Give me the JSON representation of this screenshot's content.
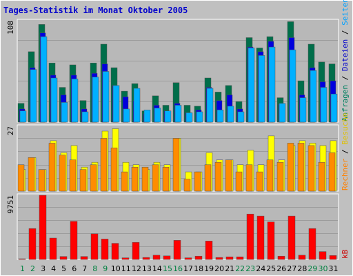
{
  "title": "Tages-Statistik im Monat Oktober 2005",
  "colors": {
    "background": "#c0c0c0",
    "frame": "#ffffff",
    "plot": "#b8b8b8",
    "grid": "#9c9c9c",
    "title": "#0000cc",
    "weekday_label": "#000000",
    "weekend_label": "#008040",
    "legend_anfragen": "#008060",
    "legend_dateien": "#0000cc",
    "legend_seiten": "#00a0ff",
    "legend_besuche": "#e0c000",
    "legend_rechner": "#ff8000",
    "legend_kb": "#cc0000",
    "anfragen": "#006e4a",
    "dateien": "#0000dd",
    "seiten": "#00b0ff",
    "besuche": "#ffff00",
    "rechner": "#ff8c00",
    "kb": "#ff0000"
  },
  "chart_data": [
    {
      "type": "bar",
      "panel": "requests",
      "y_max_label": "108",
      "ylim": [
        0,
        108
      ],
      "categories": [
        "1",
        "2",
        "3",
        "4",
        "5",
        "6",
        "7",
        "8",
        "9",
        "10",
        "11",
        "12",
        "13",
        "14",
        "15",
        "16",
        "17",
        "18",
        "19",
        "20",
        "21",
        "22",
        "23",
        "24",
        "25",
        "26",
        "27",
        "28",
        "29",
        "30",
        "31"
      ],
      "weekend_days": [
        "1",
        "2",
        "8",
        "9",
        "15",
        "16",
        "22",
        "23",
        "29",
        "30"
      ],
      "legend": [
        "Anfragen",
        "/",
        "Dateien",
        "/",
        "Seiten"
      ],
      "series": [
        {
          "name": "Anfragen",
          "color_key": "anfragen",
          "values": [
            20,
            75,
            104,
            63,
            37,
            61,
            23,
            63,
            83,
            58,
            33,
            41,
            12,
            28,
            18,
            42,
            18,
            17,
            47,
            32,
            39,
            22,
            90,
            79,
            91,
            26,
            107,
            44,
            83,
            64,
            62
          ]
        },
        {
          "name": "Dateien",
          "color_key": "dateien",
          "values": [
            14,
            58,
            95,
            50,
            29,
            50,
            14,
            52,
            62,
            39,
            27,
            23,
            9,
            18,
            12,
            20,
            10,
            13,
            37,
            23,
            29,
            14,
            80,
            75,
            86,
            19,
            90,
            29,
            58,
            43,
            44
          ]
        },
        {
          "name": "Seiten",
          "color_key": "seiten",
          "values": [
            12,
            56,
            91,
            47,
            21,
            46,
            11,
            48,
            54,
            39,
            14,
            36,
            13,
            15,
            12,
            18,
            10,
            11,
            36,
            13,
            17,
            11,
            79,
            71,
            80,
            20,
            77,
            26,
            55,
            37,
            30
          ]
        }
      ]
    },
    {
      "type": "bar",
      "panel": "visits",
      "y_max_label": "27",
      "ylim": [
        0,
        27
      ],
      "categories": [
        "1",
        "2",
        "3",
        "4",
        "5",
        "6",
        "7",
        "8",
        "9",
        "10",
        "11",
        "12",
        "13",
        "14",
        "15",
        "16",
        "17",
        "18",
        "19",
        "20",
        "21",
        "22",
        "23",
        "24",
        "25",
        "26",
        "27",
        "28",
        "29",
        "30",
        "31"
      ],
      "legend": [
        "Rechner",
        "/",
        "Besuche"
      ],
      "series": [
        {
          "name": "Besuche",
          "color_key": "besuche",
          "values": [
            9,
            14,
            9,
            21,
            16,
            19,
            10,
            12,
            25,
            26,
            12,
            11,
            9,
            12,
            11,
            22,
            8,
            8,
            16,
            13,
            13,
            11,
            17,
            11,
            23,
            13,
            19,
            21,
            20,
            19,
            21
          ]
        },
        {
          "name": "Rechner",
          "color_key": "rechner",
          "values": [
            11,
            14,
            9,
            20,
            15,
            13,
            9,
            11,
            22,
            18,
            8,
            10,
            10,
            11,
            10,
            22,
            5,
            8,
            11,
            12,
            13,
            8,
            11,
            8,
            13,
            12,
            20,
            20,
            19,
            12,
            16
          ]
        }
      ]
    },
    {
      "type": "bar",
      "panel": "kb",
      "y_max_label": "9751",
      "ylim": [
        0,
        9751
      ],
      "categories": [
        "1",
        "2",
        "3",
        "4",
        "5",
        "6",
        "7",
        "8",
        "9",
        "10",
        "11",
        "12",
        "13",
        "14",
        "15",
        "16",
        "17",
        "18",
        "19",
        "20",
        "21",
        "22",
        "23",
        "24",
        "25",
        "26",
        "27",
        "28",
        "29",
        "30",
        "31"
      ],
      "legend": [
        "kB"
      ],
      "series": [
        {
          "name": "kB",
          "color_key": "kb",
          "values": [
            100,
            4700,
            9751,
            3250,
            450,
            5800,
            450,
            3900,
            3100,
            2450,
            250,
            2600,
            300,
            650,
            550,
            2900,
            250,
            500,
            2800,
            300,
            400,
            400,
            6900,
            6600,
            5700,
            500,
            6600,
            650,
            4700,
            1200,
            600
          ]
        }
      ]
    }
  ]
}
